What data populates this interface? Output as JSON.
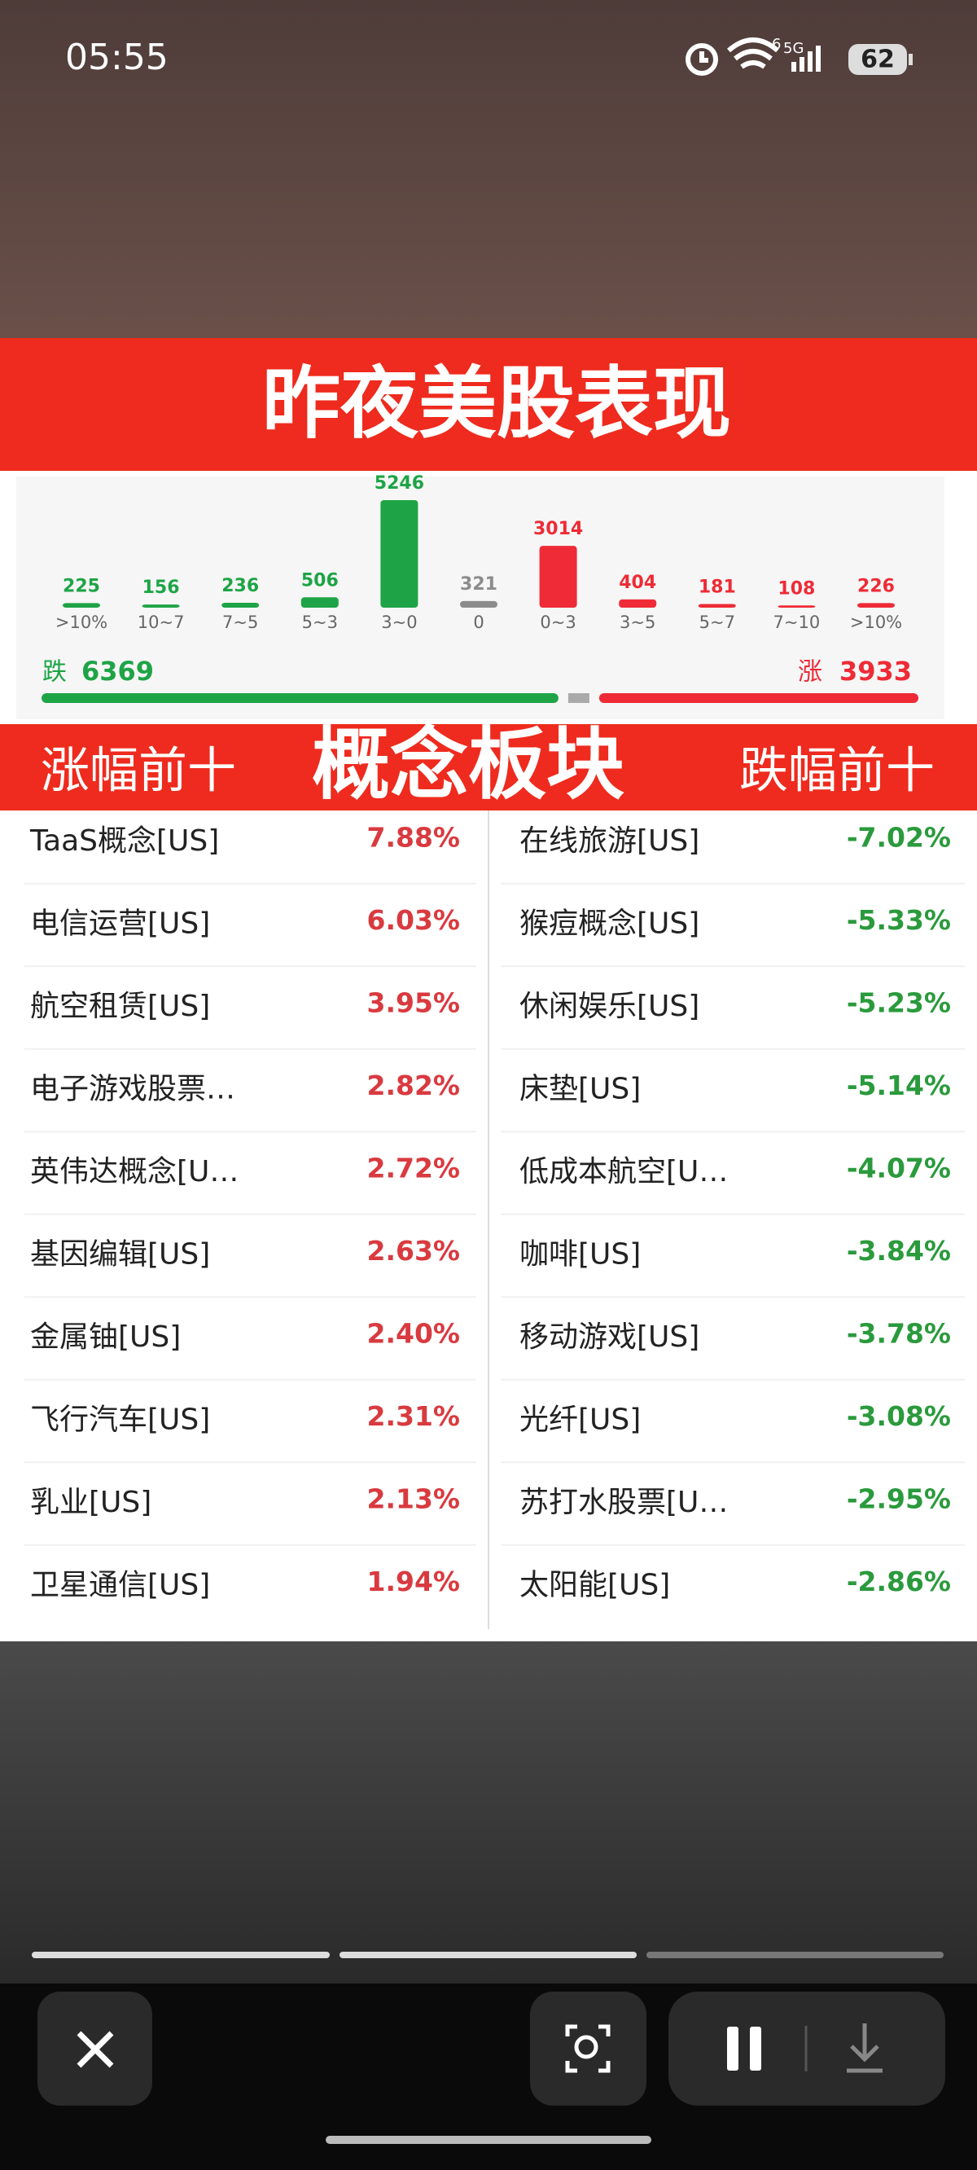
{
  "status_bar": {
    "time": "05:55",
    "wifi": "6",
    "network": "5G",
    "battery": "62"
  },
  "header": {
    "title": "昨夜美股表现"
  },
  "chart_data": {
    "type": "bar",
    "categories": [
      ">10%",
      "10~7",
      "7~5",
      "5~3",
      "3~0",
      "0",
      "0~3",
      "3~5",
      "5~7",
      "7~10",
      ">10%"
    ],
    "values": [
      225,
      156,
      236,
      506,
      5246,
      321,
      3014,
      404,
      181,
      108,
      226
    ],
    "colors": [
      "#1ea446",
      "#1ea446",
      "#1ea446",
      "#1ea446",
      "#1ea446",
      "#8c8c8c",
      "#ee2b36",
      "#ee2b36",
      "#ee2b36",
      "#ee2b36",
      "#ee2b36"
    ]
  },
  "breadth": {
    "down_label": "跌",
    "down": 6369,
    "down_color": "#1ea446",
    "up_label": "涨",
    "up": 3933,
    "up_color": "#ee2b36"
  },
  "section": {
    "left": "涨幅前十",
    "center": "概念板块",
    "right": "跌幅前十"
  },
  "gainers": [
    {
      "name": "TaaS概念[US]",
      "change": "7.88%"
    },
    {
      "name": "电信运营[US]",
      "change": "6.03%"
    },
    {
      "name": "航空租赁[US]",
      "change": "3.95%"
    },
    {
      "name": "电子游戏股票…",
      "change": "2.82%"
    },
    {
      "name": "英伟达概念[U…",
      "change": "2.72%"
    },
    {
      "name": "基因编辑[US]",
      "change": "2.63%"
    },
    {
      "name": "金属铀[US]",
      "change": "2.40%"
    },
    {
      "name": "飞行汽车[US]",
      "change": "2.31%"
    },
    {
      "name": "乳业[US]",
      "change": "2.13%"
    },
    {
      "name": "卫星通信[US]",
      "change": "1.94%"
    }
  ],
  "losers": [
    {
      "name": "在线旅游[US]",
      "change": "-7.02%"
    },
    {
      "name": "猴痘概念[US]",
      "change": "-5.33%"
    },
    {
      "name": "休闲娱乐[US]",
      "change": "-5.23%"
    },
    {
      "name": "床垫[US]",
      "change": "-5.14%"
    },
    {
      "name": "低成本航空[U…",
      "change": "-4.07%"
    },
    {
      "name": "咖啡[US]",
      "change": "-3.84%"
    },
    {
      "name": "移动游戏[US]",
      "change": "-3.78%"
    },
    {
      "name": "光纤[US]",
      "change": "-3.08%"
    },
    {
      "name": "苏打水股票[U…",
      "change": "-2.95%"
    },
    {
      "name": "太阳能[US]",
      "change": "-2.86%"
    }
  ]
}
